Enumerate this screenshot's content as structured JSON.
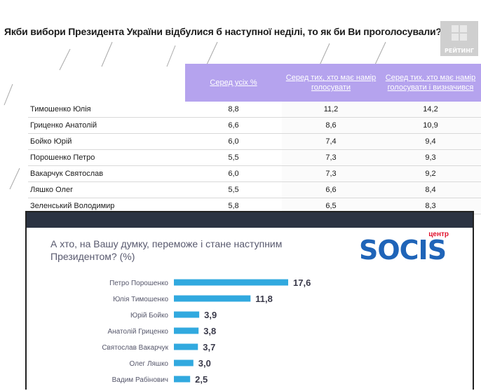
{
  "header": {
    "title": "Якби вибори Президента України відбулися б наступної неділі, то як би Ви проголосували?",
    "logo_text": "РЕЙТИНГ"
  },
  "table": {
    "columns": [
      "",
      "Серед усіх %",
      "Серед тих, хто має намір голосувати",
      "Серед тих, хто має намір голосувати і визначився"
    ],
    "rows": [
      {
        "name": "Тимошенко Юлія",
        "values": [
          "8,8",
          "11,2",
          "14,2"
        ]
      },
      {
        "name": "Гриценко Анатолій",
        "values": [
          "6,6",
          "8,6",
          "10,9"
        ]
      },
      {
        "name": "Бойко Юрій",
        "values": [
          "6,0",
          "7,4",
          "9,4"
        ]
      },
      {
        "name": "Порошенко Петро",
        "values": [
          "5,5",
          "7,3",
          "9,3"
        ]
      },
      {
        "name": "Вакарчук Святослав",
        "values": [
          "6,0",
          "7,3",
          "9,2"
        ]
      },
      {
        "name": "Ляшко Олег",
        "values": [
          "5,5",
          "6,6",
          "8,4"
        ]
      },
      {
        "name": "Зеленський Володимир",
        "values": [
          "5,8",
          "6,5",
          "8,3"
        ]
      }
    ]
  },
  "overlay": {
    "title": "А хто, на Вашу думку, переможе і стане наступним Президентом? (%)",
    "brand": "SOCIS",
    "brand_sub": "центр"
  },
  "chart_data": {
    "type": "bar",
    "orientation": "horizontal",
    "title": "А хто, на Вашу думку, переможе і стане наступним Президентом? (%)",
    "categories": [
      "Петро Порошенко",
      "Юлія Тимошенко",
      "Юрій Бойко",
      "Анатолій Гриценко",
      "Святослав Вакарчук",
      "Олег Ляшко",
      "Вадим Рабінович"
    ],
    "values": [
      17.6,
      11.8,
      3.9,
      3.8,
      3.7,
      3.0,
      2.5
    ],
    "labels": [
      "17,6",
      "11,8",
      "3,9",
      "3,8",
      "3,7",
      "3,0",
      "2,5"
    ],
    "color": "#31a9df",
    "xlim": [
      0,
      17.6
    ]
  }
}
